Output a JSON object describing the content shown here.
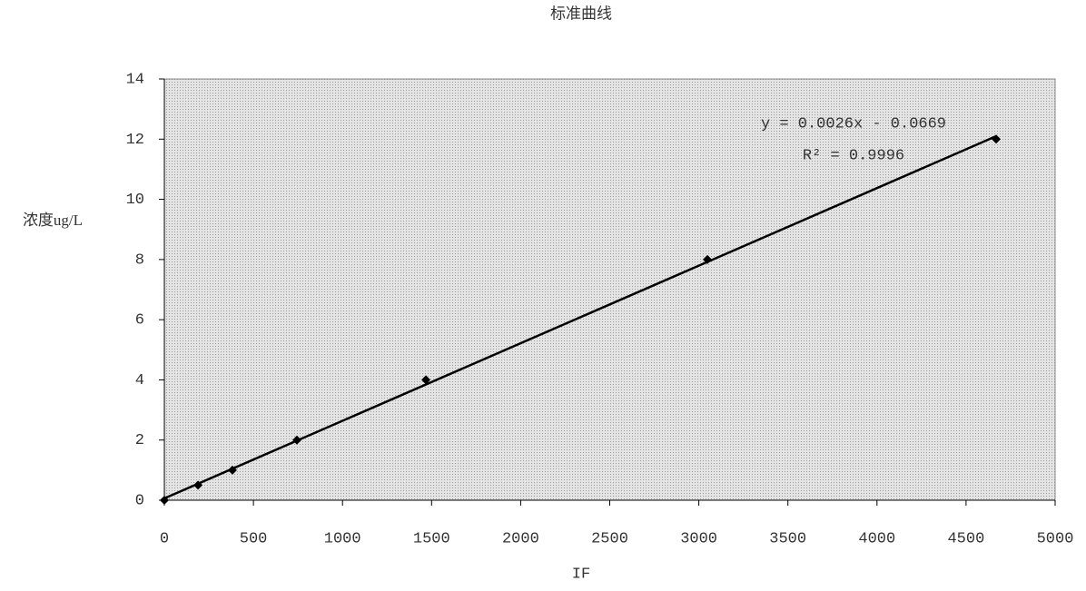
{
  "chart_data": {
    "type": "scatter",
    "title": "标准曲线",
    "x_label": "IF",
    "y_label": "浓度ug/L",
    "annotations": [
      "y = 0.0026x - 0.0669",
      "R² = 0.9996"
    ],
    "series": [
      {
        "name": "标准曲线",
        "color": "#000000",
        "x": [
          0,
          189,
          382,
          744,
          1468,
          3048,
          4669
        ],
        "values": [
          0,
          0.5,
          1,
          2,
          4,
          8,
          12
        ]
      }
    ],
    "trendline": "linear",
    "xlim": [
      0,
      5000
    ],
    "xticks": [
      0,
      500,
      1000,
      1500,
      2000,
      2500,
      3000,
      3500,
      4000,
      4500,
      5000
    ],
    "ylim": [
      0,
      14
    ],
    "yticks": [
      0,
      2,
      4,
      6,
      8,
      10,
      12,
      14
    ]
  }
}
